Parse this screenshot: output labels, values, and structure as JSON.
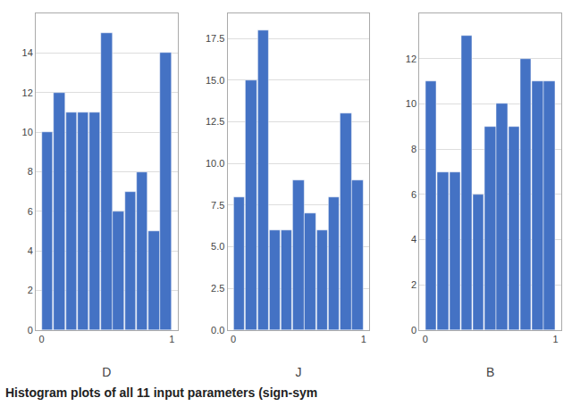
{
  "chart_data": [
    {
      "type": "histogram",
      "xlabel": "D",
      "bins": [
        0,
        0.09090909090909091,
        0.18181818181818182,
        0.2727272727272727,
        0.36363636363636365,
        0.45454545454545453,
        0.5454545454545454,
        0.6363636363636364,
        0.7272727272727273,
        0.8181818181818182,
        0.9090909090909091,
        1
      ],
      "values": [
        10,
        12,
        11,
        11,
        11,
        15,
        6,
        7,
        8,
        5,
        14
      ],
      "xlim": [
        -0.045,
        1.045
      ],
      "xticks": [
        0,
        1
      ],
      "ylim": [
        0,
        16
      ],
      "yticks": [
        0,
        2,
        4,
        6,
        8,
        10,
        12,
        14
      ],
      "color": "#4472c4",
      "grid": true
    },
    {
      "type": "histogram",
      "xlabel": "J",
      "bins": [
        0,
        0.09090909090909091,
        0.18181818181818182,
        0.2727272727272727,
        0.36363636363636365,
        0.45454545454545453,
        0.5454545454545454,
        0.6363636363636364,
        0.7272727272727273,
        0.8181818181818182,
        0.9090909090909091,
        1
      ],
      "values": [
        8,
        15,
        18,
        6,
        6,
        9,
        7,
        6,
        8,
        13,
        9
      ],
      "xlim": [
        -0.045,
        1.045
      ],
      "xticks": [
        0,
        1
      ],
      "ylim": [
        0,
        19
      ],
      "yticks": [
        {
          "value": 0,
          "label": "0.0"
        },
        2.5,
        {
          "value": 5,
          "label": "5.0"
        },
        7.5,
        {
          "value": 10,
          "label": "10.0"
        },
        12.5,
        {
          "value": 15,
          "label": "15.0"
        },
        17.5
      ],
      "color": "#4472c4",
      "grid": true
    },
    {
      "type": "histogram",
      "xlabel": "B",
      "bins": [
        0,
        0.09090909090909091,
        0.18181818181818182,
        0.2727272727272727,
        0.36363636363636365,
        0.45454545454545453,
        0.5454545454545454,
        0.6363636363636364,
        0.7272727272727273,
        0.8181818181818182,
        0.9090909090909091,
        1
      ],
      "values": [
        11,
        7,
        7,
        13,
        6,
        9,
        10,
        9,
        12,
        11,
        11
      ],
      "xlim": [
        -0.045,
        1.045
      ],
      "xticks": [
        0,
        1
      ],
      "ylim": [
        0,
        14
      ],
      "yticks": [
        0,
        2,
        4,
        6,
        8,
        10,
        12
      ],
      "color": "#4472c4",
      "grid": true
    }
  ],
  "caption": "Histogram plots of all 11 input parameters (sign-sym"
}
